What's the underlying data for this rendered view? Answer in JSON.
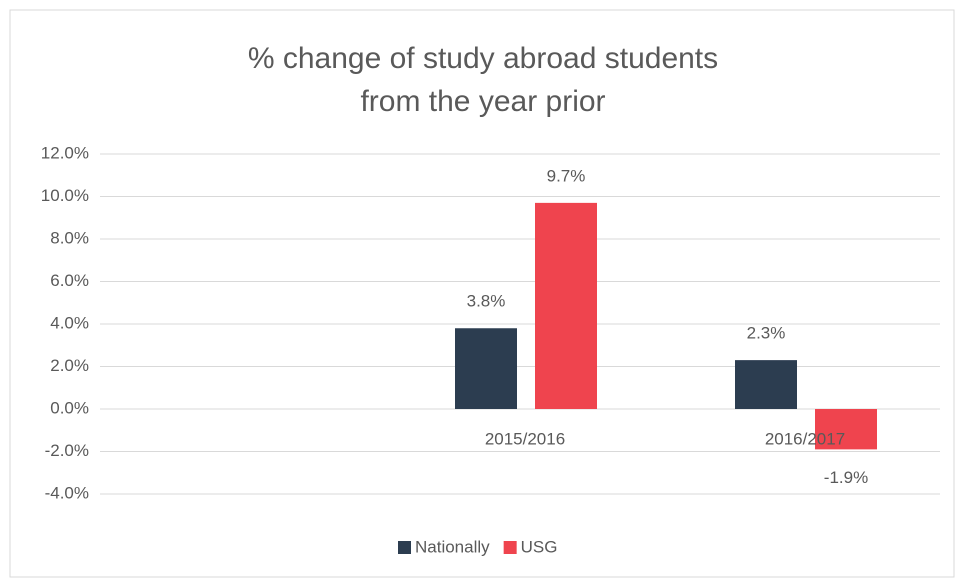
{
  "chart_data": {
    "type": "bar",
    "title": [
      "% change of study abroad students",
      "from the year prior"
    ],
    "categories": [
      null,
      "2015/2016",
      "2016/2017"
    ],
    "series": [
      {
        "name": "Nationally",
        "color": "#2c3d50",
        "values": [
          null,
          3.8,
          2.3
        ],
        "value_labels": [
          null,
          "3.8%",
          "2.3%"
        ]
      },
      {
        "name": "USG",
        "color": "#ef444e",
        "values": [
          null,
          9.7,
          -1.9
        ],
        "value_labels": [
          null,
          "9.7%",
          "-1.9%"
        ]
      }
    ],
    "ylim": [
      -4,
      12
    ],
    "yticks": [
      {
        "value": -4,
        "label": "-4.0%"
      },
      {
        "value": -2,
        "label": "-2.0%"
      },
      {
        "value": 0,
        "label": "0.0%"
      },
      {
        "value": 2,
        "label": "2.0%"
      },
      {
        "value": 4,
        "label": "4.0%"
      },
      {
        "value": 6,
        "label": "6.0%"
      },
      {
        "value": 8,
        "label": "8.0%"
      },
      {
        "value": 10,
        "label": "10.0%"
      },
      {
        "value": 12,
        "label": "12.0%"
      }
    ],
    "grid": true,
    "legend": "bottom"
  }
}
